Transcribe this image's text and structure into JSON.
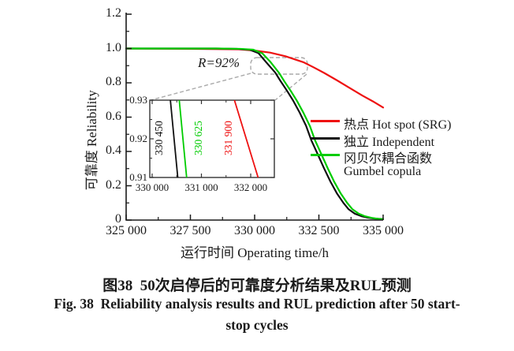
{
  "caption": {
    "line1_zh": "图38  50次启停后的可靠度分析结果及RUL预测",
    "line2_en": "Fig. 38  Reliability analysis results and RUL prediction after 50 start-",
    "line3_en": "stop cycles"
  },
  "annotation_r": "R=92%",
  "legend": {
    "items": [
      {
        "label": "热点 Hot spot (SRG)",
        "color": "#ee1111"
      },
      {
        "label": "独立 Independent",
        "color": "#111111"
      },
      {
        "label": "冈贝尔耦合函数",
        "color": "#00cc00",
        "label2": "Gumbel copula"
      }
    ]
  },
  "chart_data": {
    "type": "line",
    "title": "",
    "xlabel": "运行时间 Operating time/h",
    "ylabel": "可靠度 Reliability",
    "xlim": [
      325000,
      335000
    ],
    "ylim": [
      0,
      1.2
    ],
    "grid": false,
    "legend_position": "right-middle",
    "x_ticks": [
      {
        "v": 325000,
        "label": "325 000"
      },
      {
        "v": 327500,
        "label": "327 500"
      },
      {
        "v": 330000,
        "label": "330 000"
      },
      {
        "v": 332500,
        "label": "332 500"
      },
      {
        "v": 335000,
        "label": "335 000"
      }
    ],
    "x_minor": [
      326250,
      328750,
      331250,
      333750
    ],
    "y_ticks": [
      {
        "v": 0,
        "label": "0"
      },
      {
        "v": 0.2,
        "label": "0.2"
      },
      {
        "v": 0.4,
        "label": "0.4"
      },
      {
        "v": 0.6,
        "label": "0.6"
      },
      {
        "v": 0.8,
        "label": "0.8"
      },
      {
        "v": 1.0,
        "label": "1.0"
      },
      {
        "v": 1.2,
        "label": "1.2"
      }
    ],
    "y_minor": [
      0.1,
      0.3,
      0.5,
      0.7,
      0.9,
      1.1
    ],
    "series": [
      {
        "name": "热点 Hot spot (SRG)",
        "color": "#ee1111",
        "points": [
          [
            325000,
            1.0
          ],
          [
            327500,
            0.998
          ],
          [
            329400,
            0.995
          ],
          [
            330000,
            0.988
          ],
          [
            330600,
            0.976
          ],
          [
            331200,
            0.955
          ],
          [
            331900,
            0.92
          ],
          [
            332300,
            0.89
          ],
          [
            332700,
            0.858
          ],
          [
            333200,
            0.815
          ],
          [
            333700,
            0.77
          ],
          [
            334200,
            0.725
          ],
          [
            334600,
            0.692
          ],
          [
            335000,
            0.656
          ]
        ]
      },
      {
        "name": "独立 Independent",
        "color": "#111111",
        "points": [
          [
            325000,
            1.0
          ],
          [
            328500,
            1.0
          ],
          [
            329300,
            0.998
          ],
          [
            329800,
            0.993
          ],
          [
            330150,
            0.973
          ],
          [
            330450,
            0.92
          ],
          [
            330800,
            0.86
          ],
          [
            331000,
            0.812
          ],
          [
            331250,
            0.756
          ],
          [
            331500,
            0.696
          ],
          [
            331750,
            0.627
          ],
          [
            332000,
            0.55
          ],
          [
            332200,
            0.467
          ],
          [
            332450,
            0.385
          ],
          [
            332700,
            0.302
          ],
          [
            332950,
            0.224
          ],
          [
            333200,
            0.156
          ],
          [
            333450,
            0.101
          ],
          [
            333650,
            0.064
          ],
          [
            333900,
            0.037
          ],
          [
            334150,
            0.023
          ],
          [
            334400,
            0.014
          ],
          [
            334700,
            0.008
          ],
          [
            335000,
            0.006
          ]
        ]
      },
      {
        "name": "冈贝尔耦合函数 Gumbel copula",
        "color": "#00cc00",
        "points": [
          [
            325000,
            1.0
          ],
          [
            328600,
            1.0
          ],
          [
            329450,
            0.998
          ],
          [
            329950,
            0.993
          ],
          [
            330300,
            0.972
          ],
          [
            330625,
            0.92
          ],
          [
            330950,
            0.858
          ],
          [
            331150,
            0.81
          ],
          [
            331400,
            0.754
          ],
          [
            331650,
            0.694
          ],
          [
            331900,
            0.625
          ],
          [
            332150,
            0.548
          ],
          [
            332350,
            0.465
          ],
          [
            332600,
            0.383
          ],
          [
            332850,
            0.3
          ],
          [
            333100,
            0.222
          ],
          [
            333350,
            0.155
          ],
          [
            333600,
            0.1
          ],
          [
            333800,
            0.064
          ],
          [
            334050,
            0.037
          ],
          [
            334300,
            0.022
          ],
          [
            334550,
            0.013
          ],
          [
            334800,
            0.007
          ],
          [
            335000,
            0.005
          ]
        ]
      }
    ],
    "annotation": {
      "text": "R=92%",
      "R_level": 0.92
    },
    "inset": {
      "xlim": [
        329950,
        332530
      ],
      "ylim": [
        0.91,
        0.93
      ],
      "x_ticks": [
        {
          "v": 330000,
          "label": "330 000"
        },
        {
          "v": 331000,
          "label": "331 000"
        },
        {
          "v": 332000,
          "label": "332 000"
        }
      ],
      "x_minor": [
        330500,
        331500
      ],
      "y_ticks": [
        {
          "v": 0.93,
          "label": "0.93"
        },
        {
          "v": 0.92,
          "label": "0.92"
        },
        {
          "v": 0.91,
          "label": "0.91"
        }
      ],
      "y_minor": [
        0.925,
        0.915
      ],
      "lines": [
        {
          "label": "330 450",
          "color": "#111111",
          "x_at_R92": 330450,
          "points": [
            [
              330370,
              0.93
            ],
            [
              330520,
              0.91
            ]
          ]
        },
        {
          "label": "330 625",
          "color": "#00cc00",
          "x_at_R92": 330625,
          "points": [
            [
              330550,
              0.93
            ],
            [
              330700,
              0.91
            ]
          ]
        },
        {
          "label": "331 900",
          "color": "#ee1111",
          "x_at_R92": 331900,
          "points": [
            [
              331670,
              0.93
            ],
            [
              332150,
              0.91
            ]
          ]
        }
      ]
    }
  }
}
